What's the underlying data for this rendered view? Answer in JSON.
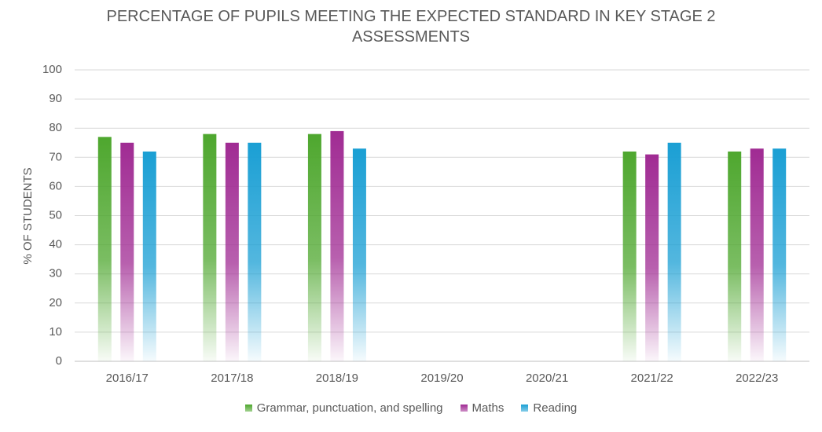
{
  "chart_data": {
    "type": "bar",
    "title": "PERCENTAGE OF PUPILS MEETING THE EXPECTED STANDARD IN KEY STAGE 2 ASSESSMENTS",
    "y_label": "% OF STUDENTS",
    "categories": [
      "2016/17",
      "2017/18",
      "2018/19",
      "2019/20",
      "2020/21",
      "2021/22",
      "2022/23"
    ],
    "series": [
      {
        "name": "Grammar, punctuation, and spelling",
        "color": "#4ea72e",
        "values": [
          77,
          78,
          78,
          null,
          null,
          72,
          72
        ]
      },
      {
        "name": "Maths",
        "color": "#a02b93",
        "values": [
          75,
          75,
          79,
          null,
          null,
          71,
          73
        ]
      },
      {
        "name": "Reading",
        "color": "#1a9fd4",
        "values": [
          72,
          75,
          73,
          null,
          null,
          75,
          73
        ]
      }
    ],
    "ylim": [
      0,
      100
    ],
    "yticks": [
      0,
      10,
      20,
      30,
      40,
      50,
      60,
      70,
      80,
      90,
      100
    ],
    "grid": true,
    "legend": "bottom"
  }
}
